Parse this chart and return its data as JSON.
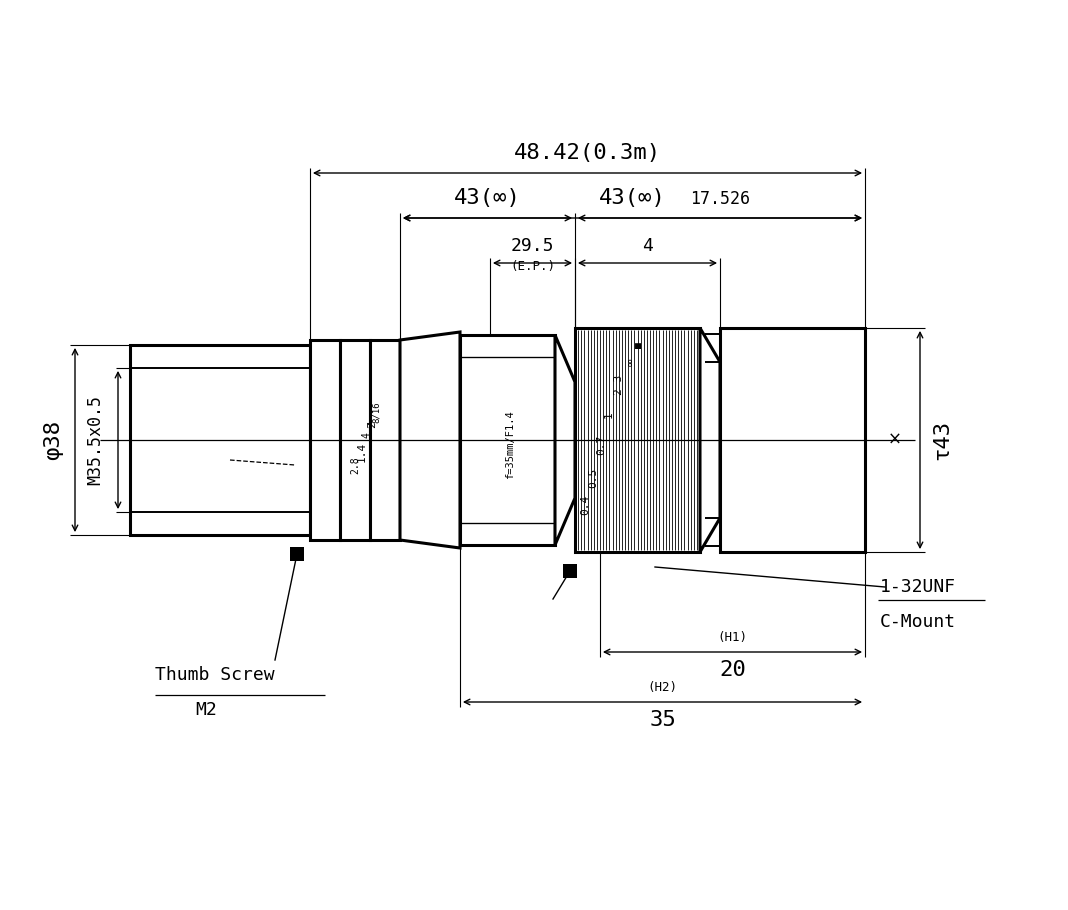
{
  "bg_color": "#ffffff",
  "line_color": "#000000",
  "lw_thick": 2.2,
  "lw_med": 1.4,
  "lw_thin": 0.8,
  "lw_dim": 1.0,
  "fs_large": 16,
  "fs_med": 13,
  "fs_small": 10,
  "fs_tiny": 8,
  "annotations": {
    "dim_48": "48.42(0.3m)",
    "dim_43": "43(∞)",
    "dim_17": "17.526",
    "dim_29": "29.5",
    "dim_ep": "(E.P.)",
    "dim_4": "4",
    "dim_38": "φ38",
    "dim_m355": "M35.5x0.5",
    "dim_43d": "τ43",
    "dim_20": "20",
    "dim_h1": "(H1)",
    "dim_35": "35",
    "dim_h2": "(H2)",
    "label_thumb": "Thumb Screw",
    "label_m2": "M2",
    "label_mount": "1-32UNF",
    "label_cmount": "C-Mount"
  }
}
